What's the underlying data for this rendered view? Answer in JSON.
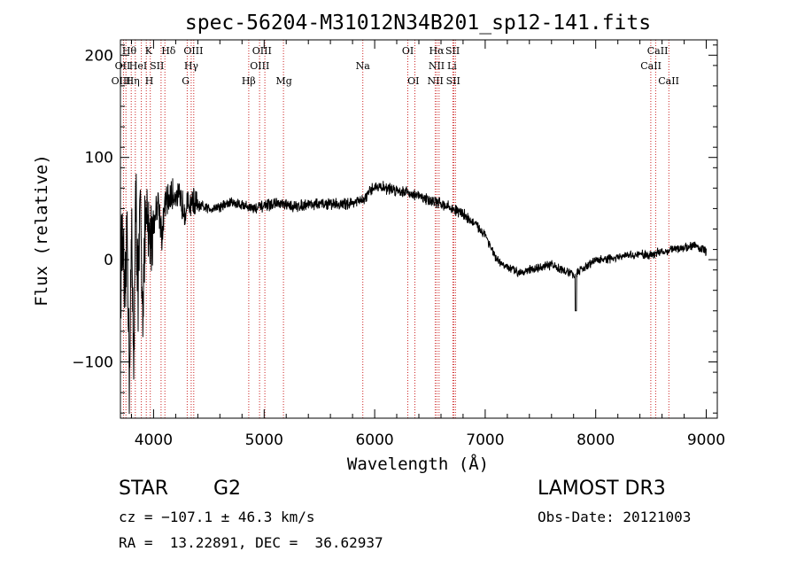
{
  "chart_data": {
    "type": "line",
    "title": "spec-56204-M31012N34B201_sp12-141.fits",
    "xlabel": "Wavelength (Å)",
    "ylabel": "Flux (relative)",
    "xlim": [
      3700,
      9100
    ],
    "ylim": [
      -155,
      215
    ],
    "x_ticks": [
      4000,
      5000,
      6000,
      7000,
      8000,
      9000
    ],
    "x_tick_labels": [
      "4000",
      "5000",
      "6000",
      "7000",
      "8000",
      "9000"
    ],
    "y_ticks": [
      -100,
      0,
      100,
      200
    ],
    "y_tick_labels": [
      "−100",
      "0",
      "100",
      "200"
    ],
    "grid": false,
    "series": [
      {
        "name": "flux",
        "x": [
          3700,
          3720,
          3740,
          3760,
          3780,
          3800,
          3820,
          3840,
          3860,
          3880,
          3900,
          3930,
          3960,
          4000,
          4040,
          4080,
          4100,
          4150,
          4200,
          4250,
          4300,
          4350,
          4400,
          4500,
          4600,
          4700,
          4800,
          4900,
          5000,
          5100,
          5200,
          5300,
          5400,
          5500,
          5600,
          5700,
          5800,
          5900,
          6000,
          6100,
          6200,
          6300,
          6400,
          6500,
          6600,
          6700,
          6800,
          6900,
          7000,
          7100,
          7200,
          7300,
          7400,
          7500,
          7600,
          7700,
          7800,
          7900,
          8000,
          8100,
          8200,
          8300,
          8400,
          8500,
          8600,
          8700,
          8800,
          8900,
          9000
        ],
        "values": [
          -20,
          30,
          -60,
          40,
          -110,
          20,
          -90,
          60,
          -30,
          50,
          -40,
          40,
          20,
          35,
          60,
          20,
          55,
          60,
          65,
          55,
          50,
          58,
          52,
          50,
          52,
          56,
          54,
          50,
          52,
          55,
          53,
          52,
          55,
          54,
          55,
          54,
          56,
          58,
          72,
          70,
          68,
          66,
          62,
          58,
          55,
          50,
          45,
          35,
          25,
          0,
          -8,
          -12,
          -10,
          -8,
          -5,
          -10,
          -15,
          -8,
          0,
          0,
          2,
          4,
          5,
          5,
          8,
          10,
          12,
          14,
          8
        ]
      }
    ],
    "spectral_lines": [
      {
        "wavelength": 3727,
        "label": "OII"
      },
      {
        "wavelength": 3750,
        "label": "Hθ"
      },
      {
        "wavelength": 3798,
        "label": ""
      },
      {
        "wavelength": 3835,
        "label": ""
      },
      {
        "wavelength": 3889,
        "label": "HeI"
      },
      {
        "wavelength": 3934,
        "label": "K"
      },
      {
        "wavelength": 3970,
        "label": "H"
      },
      {
        "wavelength": 4068,
        "label": "SII"
      },
      {
        "wavelength": 4102,
        "label": "Hδ"
      },
      {
        "wavelength": 4304,
        "label": "G"
      },
      {
        "wavelength": 4340,
        "label": "Hγ"
      },
      {
        "wavelength": 4363,
        "label": "OIII"
      },
      {
        "wavelength": 4861,
        "label": "Hβ"
      },
      {
        "wavelength": 4959,
        "label": "OIII"
      },
      {
        "wavelength": 5007,
        "label": "OIII"
      },
      {
        "wavelength": 5175,
        "label": "Mg"
      },
      {
        "wavelength": 5893,
        "label": "Na"
      },
      {
        "wavelength": 6300,
        "label": "OI"
      },
      {
        "wavelength": 6364,
        "label": "OI"
      },
      {
        "wavelength": 6548,
        "label": "NII"
      },
      {
        "wavelength": 6563,
        "label": "Hα"
      },
      {
        "wavelength": 6583,
        "label": "NII"
      },
      {
        "wavelength": 6708,
        "label": "Li"
      },
      {
        "wavelength": 6716,
        "label": "SII"
      },
      {
        "wavelength": 6731,
        "label": "SII"
      },
      {
        "wavelength": 8498,
        "label": "CaII"
      },
      {
        "wavelength": 8542,
        "label": "CaII"
      },
      {
        "wavelength": 8662,
        "label": "CaII"
      }
    ],
    "line_label_text": [
      {
        "text": "Hθ",
        "row": 0,
        "wavelength": 3780
      },
      {
        "text": "K",
        "row": 0,
        "wavelength": 3955
      },
      {
        "text": "Hδ",
        "row": 0,
        "wavelength": 4135
      },
      {
        "text": "OIII",
        "row": 0,
        "wavelength": 4360
      },
      {
        "text": "OIII",
        "row": 0,
        "wavelength": 4980
      },
      {
        "text": "OI",
        "row": 0,
        "wavelength": 6300
      },
      {
        "text": "Hα",
        "row": 0,
        "wavelength": 6560
      },
      {
        "text": "SII",
        "row": 0,
        "wavelength": 6705
      },
      {
        "text": "CaII",
        "row": 0,
        "wavelength": 8560
      },
      {
        "text": "OII",
        "row": 1,
        "wavelength": 3720
      },
      {
        "text": "HeI",
        "row": 1,
        "wavelength": 3860
      },
      {
        "text": "SII",
        "row": 1,
        "wavelength": 4030
      },
      {
        "text": "Hγ",
        "row": 1,
        "wavelength": 4340
      },
      {
        "text": "OIII",
        "row": 1,
        "wavelength": 4960
      },
      {
        "text": "Na",
        "row": 1,
        "wavelength": 5893
      },
      {
        "text": "NII",
        "row": 1,
        "wavelength": 6560
      },
      {
        "text": "Li",
        "row": 1,
        "wavelength": 6700
      },
      {
        "text": "CaII",
        "row": 1,
        "wavelength": 8500
      },
      {
        "text": "OIII",
        "row": 2,
        "wavelength": 3705
      },
      {
        "text": "Hη",
        "row": 2,
        "wavelength": 3810
      },
      {
        "text": "H",
        "row": 2,
        "wavelength": 3960
      },
      {
        "text": "G",
        "row": 2,
        "wavelength": 4290
      },
      {
        "text": "Hβ",
        "row": 2,
        "wavelength": 4860
      },
      {
        "text": "Mg",
        "row": 2,
        "wavelength": 5180
      },
      {
        "text": "OI",
        "row": 2,
        "wavelength": 6350
      },
      {
        "text": "NII",
        "row": 2,
        "wavelength": 6550
      },
      {
        "text": "SII",
        "row": 2,
        "wavelength": 6710
      },
      {
        "text": "CaII",
        "row": 2,
        "wavelength": 8660
      }
    ]
  },
  "info": {
    "class_label": "STAR",
    "subclass_label": "G2",
    "survey": "LAMOST DR3",
    "cz": "cz = −107.1 ± 46.3 km/s",
    "obs_date": "Obs-Date: 20121003",
    "coords": "RA =  13.22891, DEC =  36.62937"
  }
}
